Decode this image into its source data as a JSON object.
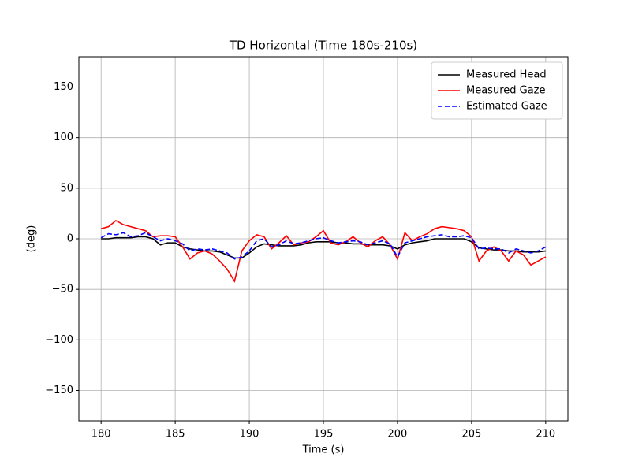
{
  "chart_data": {
    "type": "line",
    "title": "TD Horizontal (Time 180s-210s)",
    "x_label": "Time (s)",
    "y_label": "(deg)",
    "x": [
      180,
      180.5,
      181,
      181.5,
      182,
      182.5,
      183,
      183.5,
      184,
      184.5,
      185,
      185.5,
      186,
      186.5,
      187,
      187.5,
      188,
      188.5,
      189,
      189.5,
      190,
      190.5,
      191,
      191.5,
      192,
      192.5,
      193,
      193.5,
      194,
      194.5,
      195,
      195.5,
      196,
      196.5,
      197,
      197.5,
      198,
      198.5,
      199,
      199.5,
      200,
      200.5,
      201,
      201.5,
      202,
      202.5,
      203,
      203.5,
      204,
      204.5,
      205,
      205.5,
      206,
      206.5,
      207,
      207.5,
      208,
      208.5,
      209,
      209.5,
      210
    ],
    "series": [
      {
        "name": "Measured Head",
        "color": "#000000",
        "linestyle": "solid",
        "values": [
          0,
          0,
          1,
          1,
          1,
          2,
          2,
          0,
          -6,
          -4,
          -4,
          -8,
          -10,
          -11,
          -12,
          -12,
          -13,
          -16,
          -19,
          -19,
          -14,
          -8,
          -5,
          -6,
          -7,
          -7,
          -7,
          -6,
          -4,
          -3,
          -3,
          -3,
          -4,
          -4,
          -5,
          -5,
          -6,
          -6,
          -6,
          -7,
          -10,
          -6,
          -4,
          -3,
          -2,
          0,
          0,
          0,
          0,
          0,
          -3,
          -9,
          -10,
          -11,
          -11,
          -12,
          -12,
          -13,
          -13,
          -13,
          -12
        ]
      },
      {
        "name": "Measured Gaze",
        "color": "#ff0000",
        "linestyle": "solid",
        "values": [
          10,
          12,
          18,
          14,
          12,
          10,
          8,
          2,
          3,
          3,
          2,
          -8,
          -20,
          -14,
          -12,
          -15,
          -22,
          -30,
          -42,
          -12,
          -2,
          4,
          2,
          -10,
          -4,
          3,
          -6,
          -4,
          -3,
          2,
          8,
          -4,
          -6,
          -3,
          2,
          -4,
          -8,
          -2,
          2,
          -6,
          -20,
          6,
          -2,
          2,
          5,
          10,
          12,
          11,
          10,
          8,
          2,
          -22,
          -12,
          -8,
          -12,
          -22,
          -12,
          -16,
          -26,
          -22,
          -18
        ]
      },
      {
        "name": "Estimated Gaze",
        "color": "#0000ff",
        "linestyle": "dashed",
        "values": [
          1,
          5,
          4,
          6,
          2,
          3,
          6,
          2,
          -2,
          0,
          -2,
          -5,
          -12,
          -10,
          -11,
          -10,
          -12,
          -14,
          -20,
          -18,
          -12,
          -2,
          0,
          -8,
          -6,
          -2,
          -5,
          -4,
          -2,
          0,
          1,
          -2,
          -4,
          -3,
          -2,
          -3,
          -6,
          -4,
          -2,
          -5,
          -18,
          -4,
          -2,
          0,
          2,
          3,
          4,
          2,
          2,
          3,
          1,
          -10,
          -9,
          -10,
          -10,
          -14,
          -10,
          -12,
          -14,
          -12,
          -8
        ]
      }
    ],
    "xlim": [
      178.5,
      211.5
    ],
    "ylim": [
      -180,
      180
    ],
    "xticks": [
      180,
      185,
      190,
      195,
      200,
      205,
      210
    ],
    "yticks": [
      {
        "value": -150,
        "label": "−150"
      },
      {
        "value": -100,
        "label": "−100"
      },
      {
        "value": -50,
        "label": "−50"
      },
      0,
      50,
      100,
      150
    ],
    "grid": true,
    "legend": "upper right"
  }
}
